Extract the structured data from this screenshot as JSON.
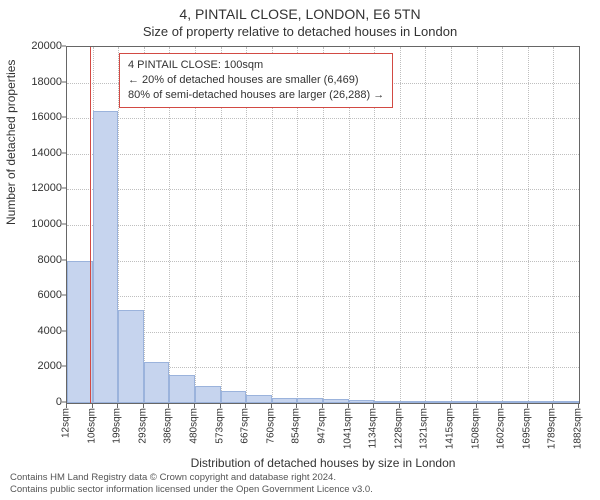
{
  "title_line1": "4, PINTAIL CLOSE, LONDON, E6 5TN",
  "title_line2": "Size of property relative to detached houses in London",
  "y_axis_label": "Number of detached properties",
  "x_axis_label": "Distribution of detached houses by size in London",
  "footer_line1": "Contains HM Land Registry data © Crown copyright and database right 2024.",
  "footer_line2": "Contains public sector information licensed under the Open Government Licence v3.0.",
  "info_box": {
    "line1": "4 PINTAIL CLOSE: 100sqm",
    "line2": "← 20% of detached houses are smaller (6,469)",
    "line3": "80% of semi-detached houses are larger (26,288) →"
  },
  "chart": {
    "type": "histogram",
    "colors": {
      "bar_fill": "#c6d4ee",
      "bar_stroke": "#9bb3dc",
      "axis": "#666666",
      "grid": "#bfbfbf",
      "marker": "#d24a43",
      "background": "#ffffff",
      "text": "#333333"
    },
    "ylim": [
      0,
      20000
    ],
    "ytick_step": 2000,
    "yticks": [
      0,
      2000,
      4000,
      6000,
      8000,
      10000,
      12000,
      14000,
      16000,
      18000,
      20000
    ],
    "x_tick_labels": [
      "12sqm",
      "106sqm",
      "199sqm",
      "293sqm",
      "386sqm",
      "480sqm",
      "573sqm",
      "667sqm",
      "760sqm",
      "854sqm",
      "947sqm",
      "1041sqm",
      "1134sqm",
      "1228sqm",
      "1321sqm",
      "1415sqm",
      "1508sqm",
      "1602sqm",
      "1695sqm",
      "1789sqm",
      "1882sqm"
    ],
    "bar_values": [
      8000,
      16400,
      5200,
      2300,
      1600,
      950,
      650,
      450,
      300,
      260,
      200,
      170,
      130,
      120,
      100,
      80,
      70,
      60,
      50,
      40
    ],
    "marker_value_sqm": 100,
    "x_range_sqm": [
      12,
      1975
    ],
    "title_fontsize": 14,
    "subtitle_fontsize": 13,
    "axis_label_fontsize": 12,
    "tick_fontsize": 11,
    "xtick_fontsize": 10,
    "info_fontsize": 11
  }
}
